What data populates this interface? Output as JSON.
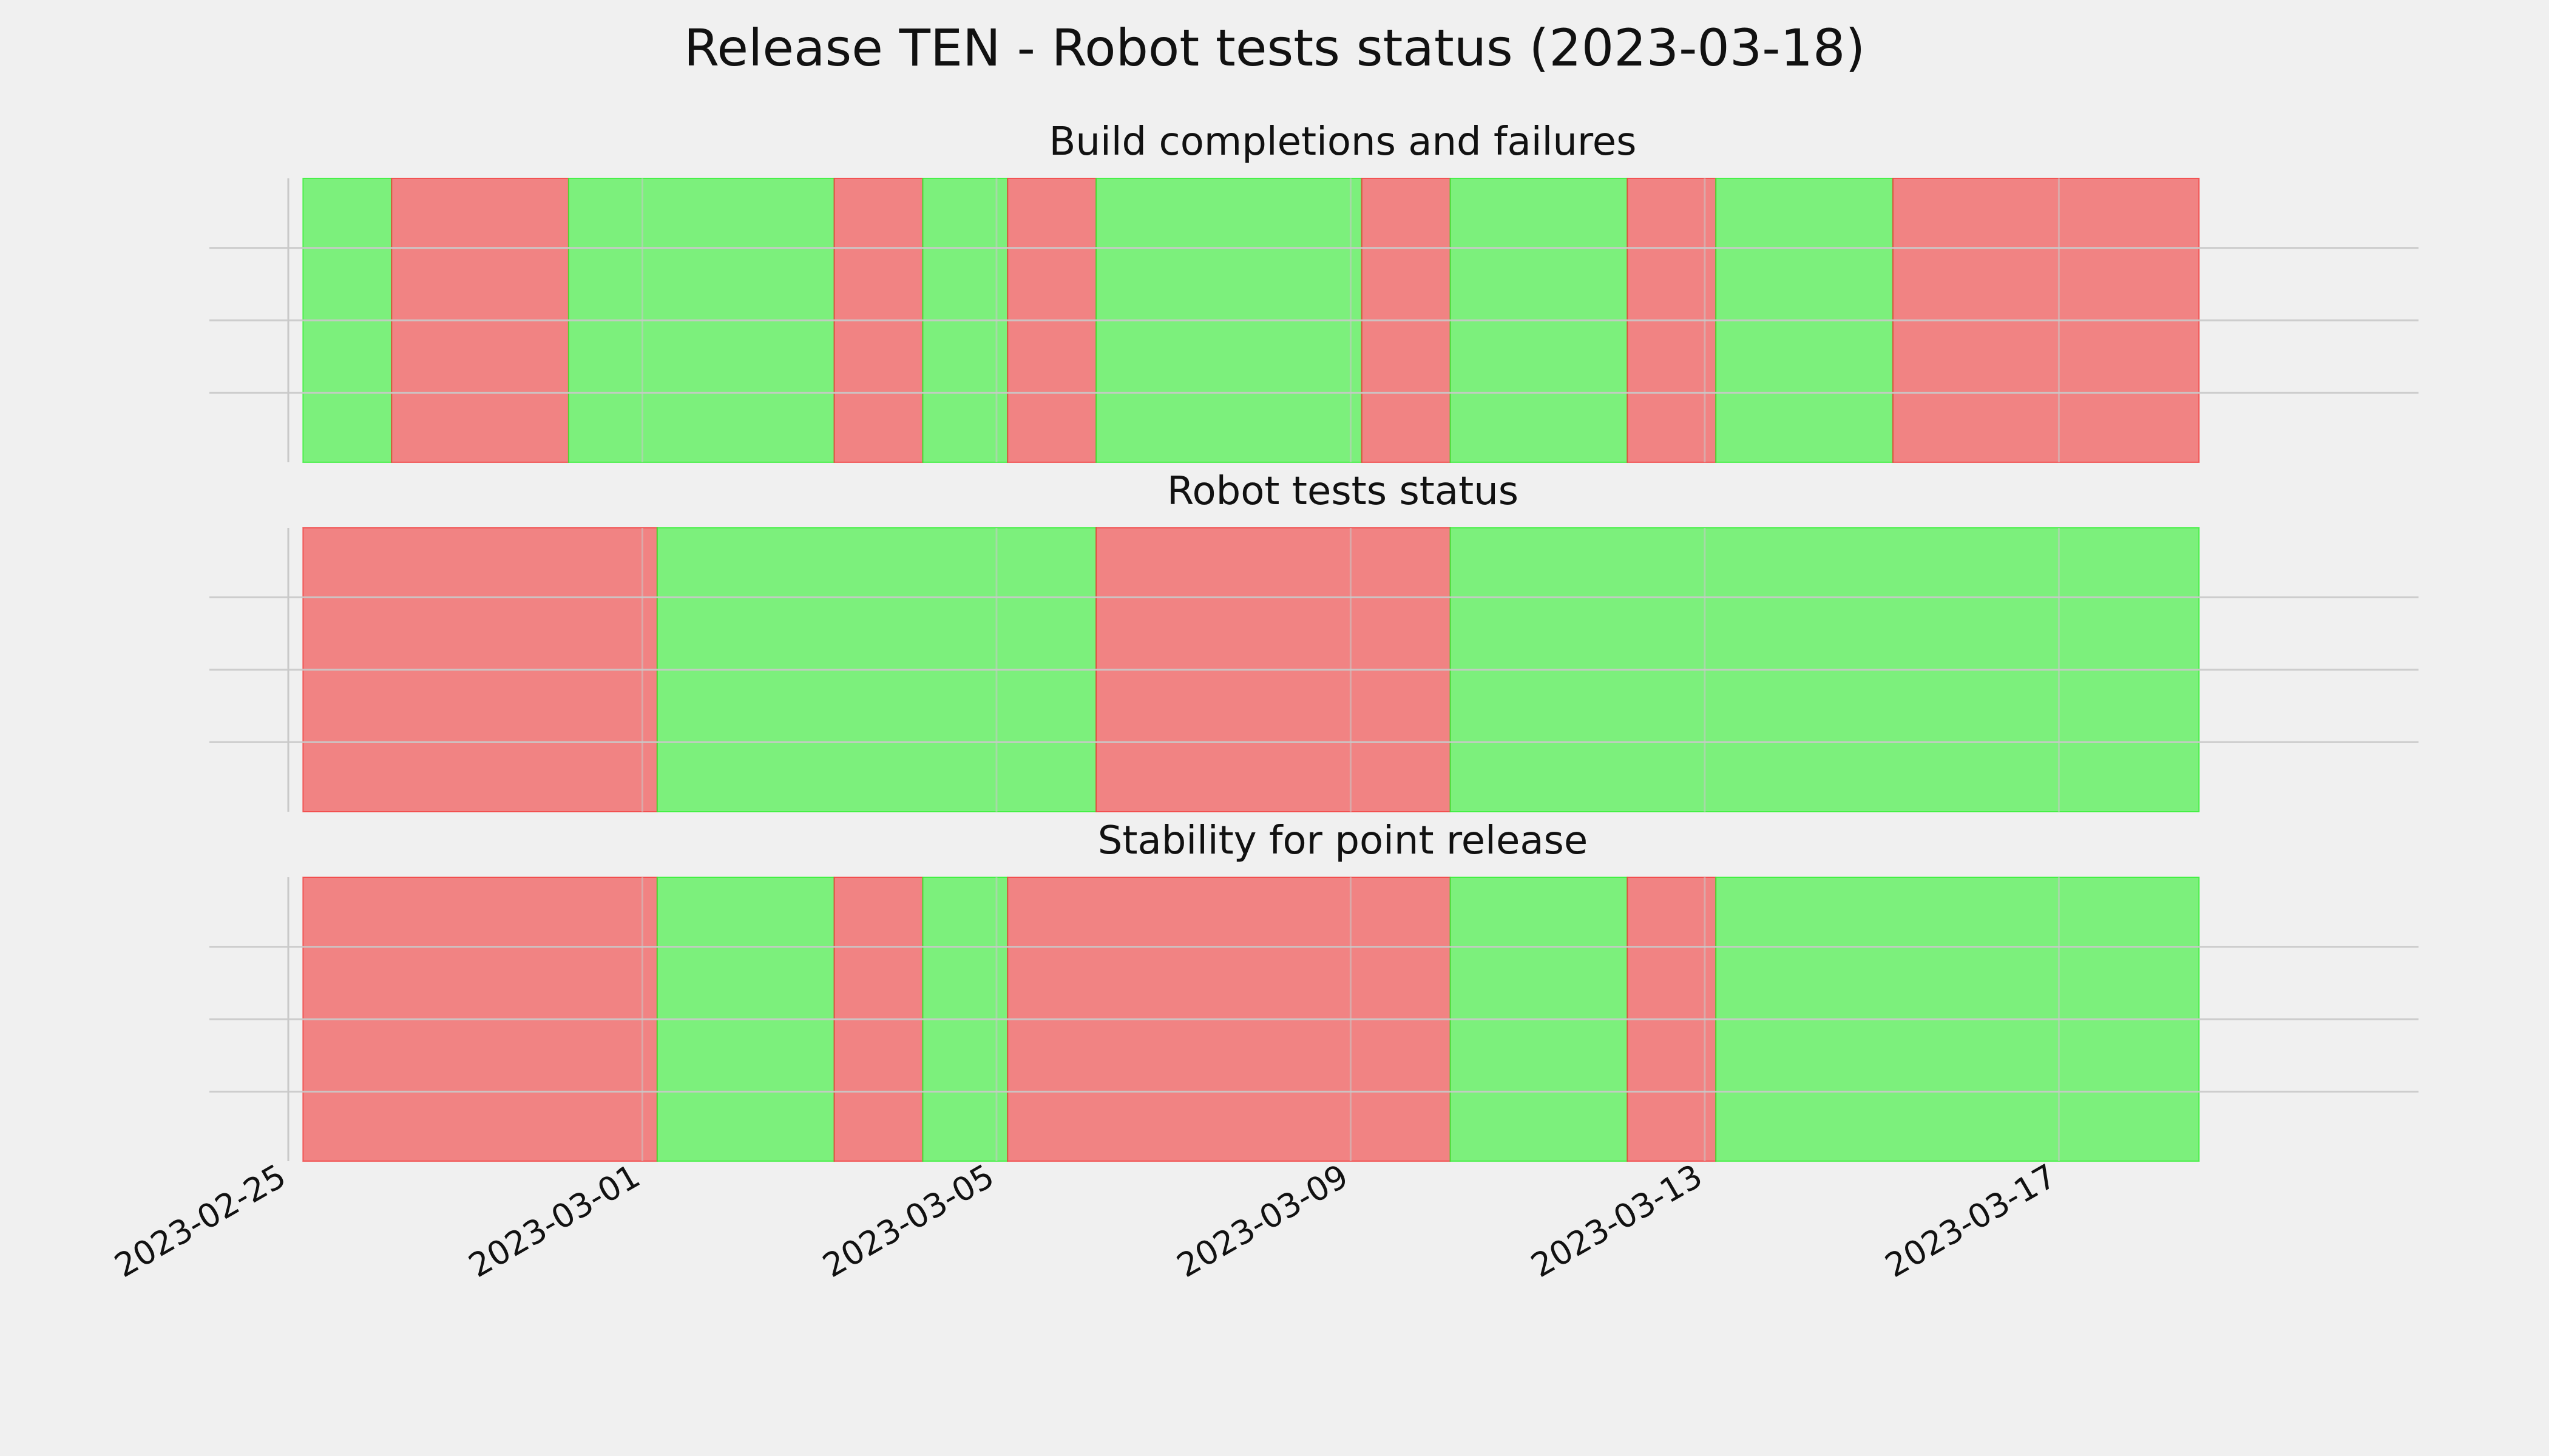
{
  "title": "Release TEN - Robot tests status (2023-03-18)",
  "colors": {
    "background": "#f0f0f0",
    "pass": "#2ef02e",
    "fail": "#f23a3a",
    "grid": "#c9c9c9",
    "text": "#111111"
  },
  "chart_data": [
    {
      "type": "timeline",
      "title": "Build completions and failures",
      "x_type": "date",
      "xlim": [
        "2023-02-25",
        "2023-03-20"
      ],
      "grid": true,
      "spans": [
        {
          "start": "2023-02-25T04:00",
          "end": "2023-02-26T04:00",
          "status": "pass"
        },
        {
          "start": "2023-02-26T04:00",
          "end": "2023-02-28T04:00",
          "status": "fail"
        },
        {
          "start": "2023-02-28T04:00",
          "end": "2023-03-03T04:00",
          "status": "pass"
        },
        {
          "start": "2023-03-03T04:00",
          "end": "2023-03-04T04:00",
          "status": "fail"
        },
        {
          "start": "2023-03-04T04:00",
          "end": "2023-03-05T03:00",
          "status": "pass"
        },
        {
          "start": "2023-03-05T03:00",
          "end": "2023-03-06T03:00",
          "status": "fail"
        },
        {
          "start": "2023-03-06T03:00",
          "end": "2023-03-09T03:00",
          "status": "pass"
        },
        {
          "start": "2023-03-09T03:00",
          "end": "2023-03-10T03:00",
          "status": "fail"
        },
        {
          "start": "2023-03-10T03:00",
          "end": "2023-03-12T03:00",
          "status": "pass"
        },
        {
          "start": "2023-03-12T03:00",
          "end": "2023-03-13T03:00",
          "status": "fail"
        },
        {
          "start": "2023-03-13T03:00",
          "end": "2023-03-15T03:00",
          "status": "pass"
        },
        {
          "start": "2023-03-15T03:00",
          "end": "2023-03-18T14:00",
          "status": "fail"
        }
      ]
    },
    {
      "type": "timeline",
      "title": "Robot tests status",
      "x_type": "date",
      "xlim": [
        "2023-02-25",
        "2023-03-20"
      ],
      "grid": true,
      "spans": [
        {
          "start": "2023-02-25T04:00",
          "end": "2023-03-01T04:00",
          "status": "fail"
        },
        {
          "start": "2023-03-01T04:00",
          "end": "2023-03-06T03:00",
          "status": "pass"
        },
        {
          "start": "2023-03-06T03:00",
          "end": "2023-03-10T03:00",
          "status": "fail"
        },
        {
          "start": "2023-03-10T03:00",
          "end": "2023-03-18T14:00",
          "status": "pass"
        }
      ]
    },
    {
      "type": "timeline",
      "title": "Stability for point release",
      "x_type": "date",
      "xlim": [
        "2023-02-25",
        "2023-03-20"
      ],
      "grid": true,
      "spans": [
        {
          "start": "2023-02-25T04:00",
          "end": "2023-03-01T04:00",
          "status": "fail"
        },
        {
          "start": "2023-03-01T04:00",
          "end": "2023-03-03T04:00",
          "status": "pass"
        },
        {
          "start": "2023-03-03T04:00",
          "end": "2023-03-04T04:00",
          "status": "fail"
        },
        {
          "start": "2023-03-04T04:00",
          "end": "2023-03-05T03:00",
          "status": "pass"
        },
        {
          "start": "2023-03-05T03:00",
          "end": "2023-03-10T03:00",
          "status": "fail"
        },
        {
          "start": "2023-03-10T03:00",
          "end": "2023-03-12T03:00",
          "status": "pass"
        },
        {
          "start": "2023-03-12T03:00",
          "end": "2023-03-13T03:00",
          "status": "fail"
        },
        {
          "start": "2023-03-13T03:00",
          "end": "2023-03-18T14:00",
          "status": "pass"
        }
      ]
    }
  ],
  "x_ticks": [
    "2023-02-25",
    "2023-03-01",
    "2023-03-05",
    "2023-03-09",
    "2023-03-13",
    "2023-03-17"
  ]
}
